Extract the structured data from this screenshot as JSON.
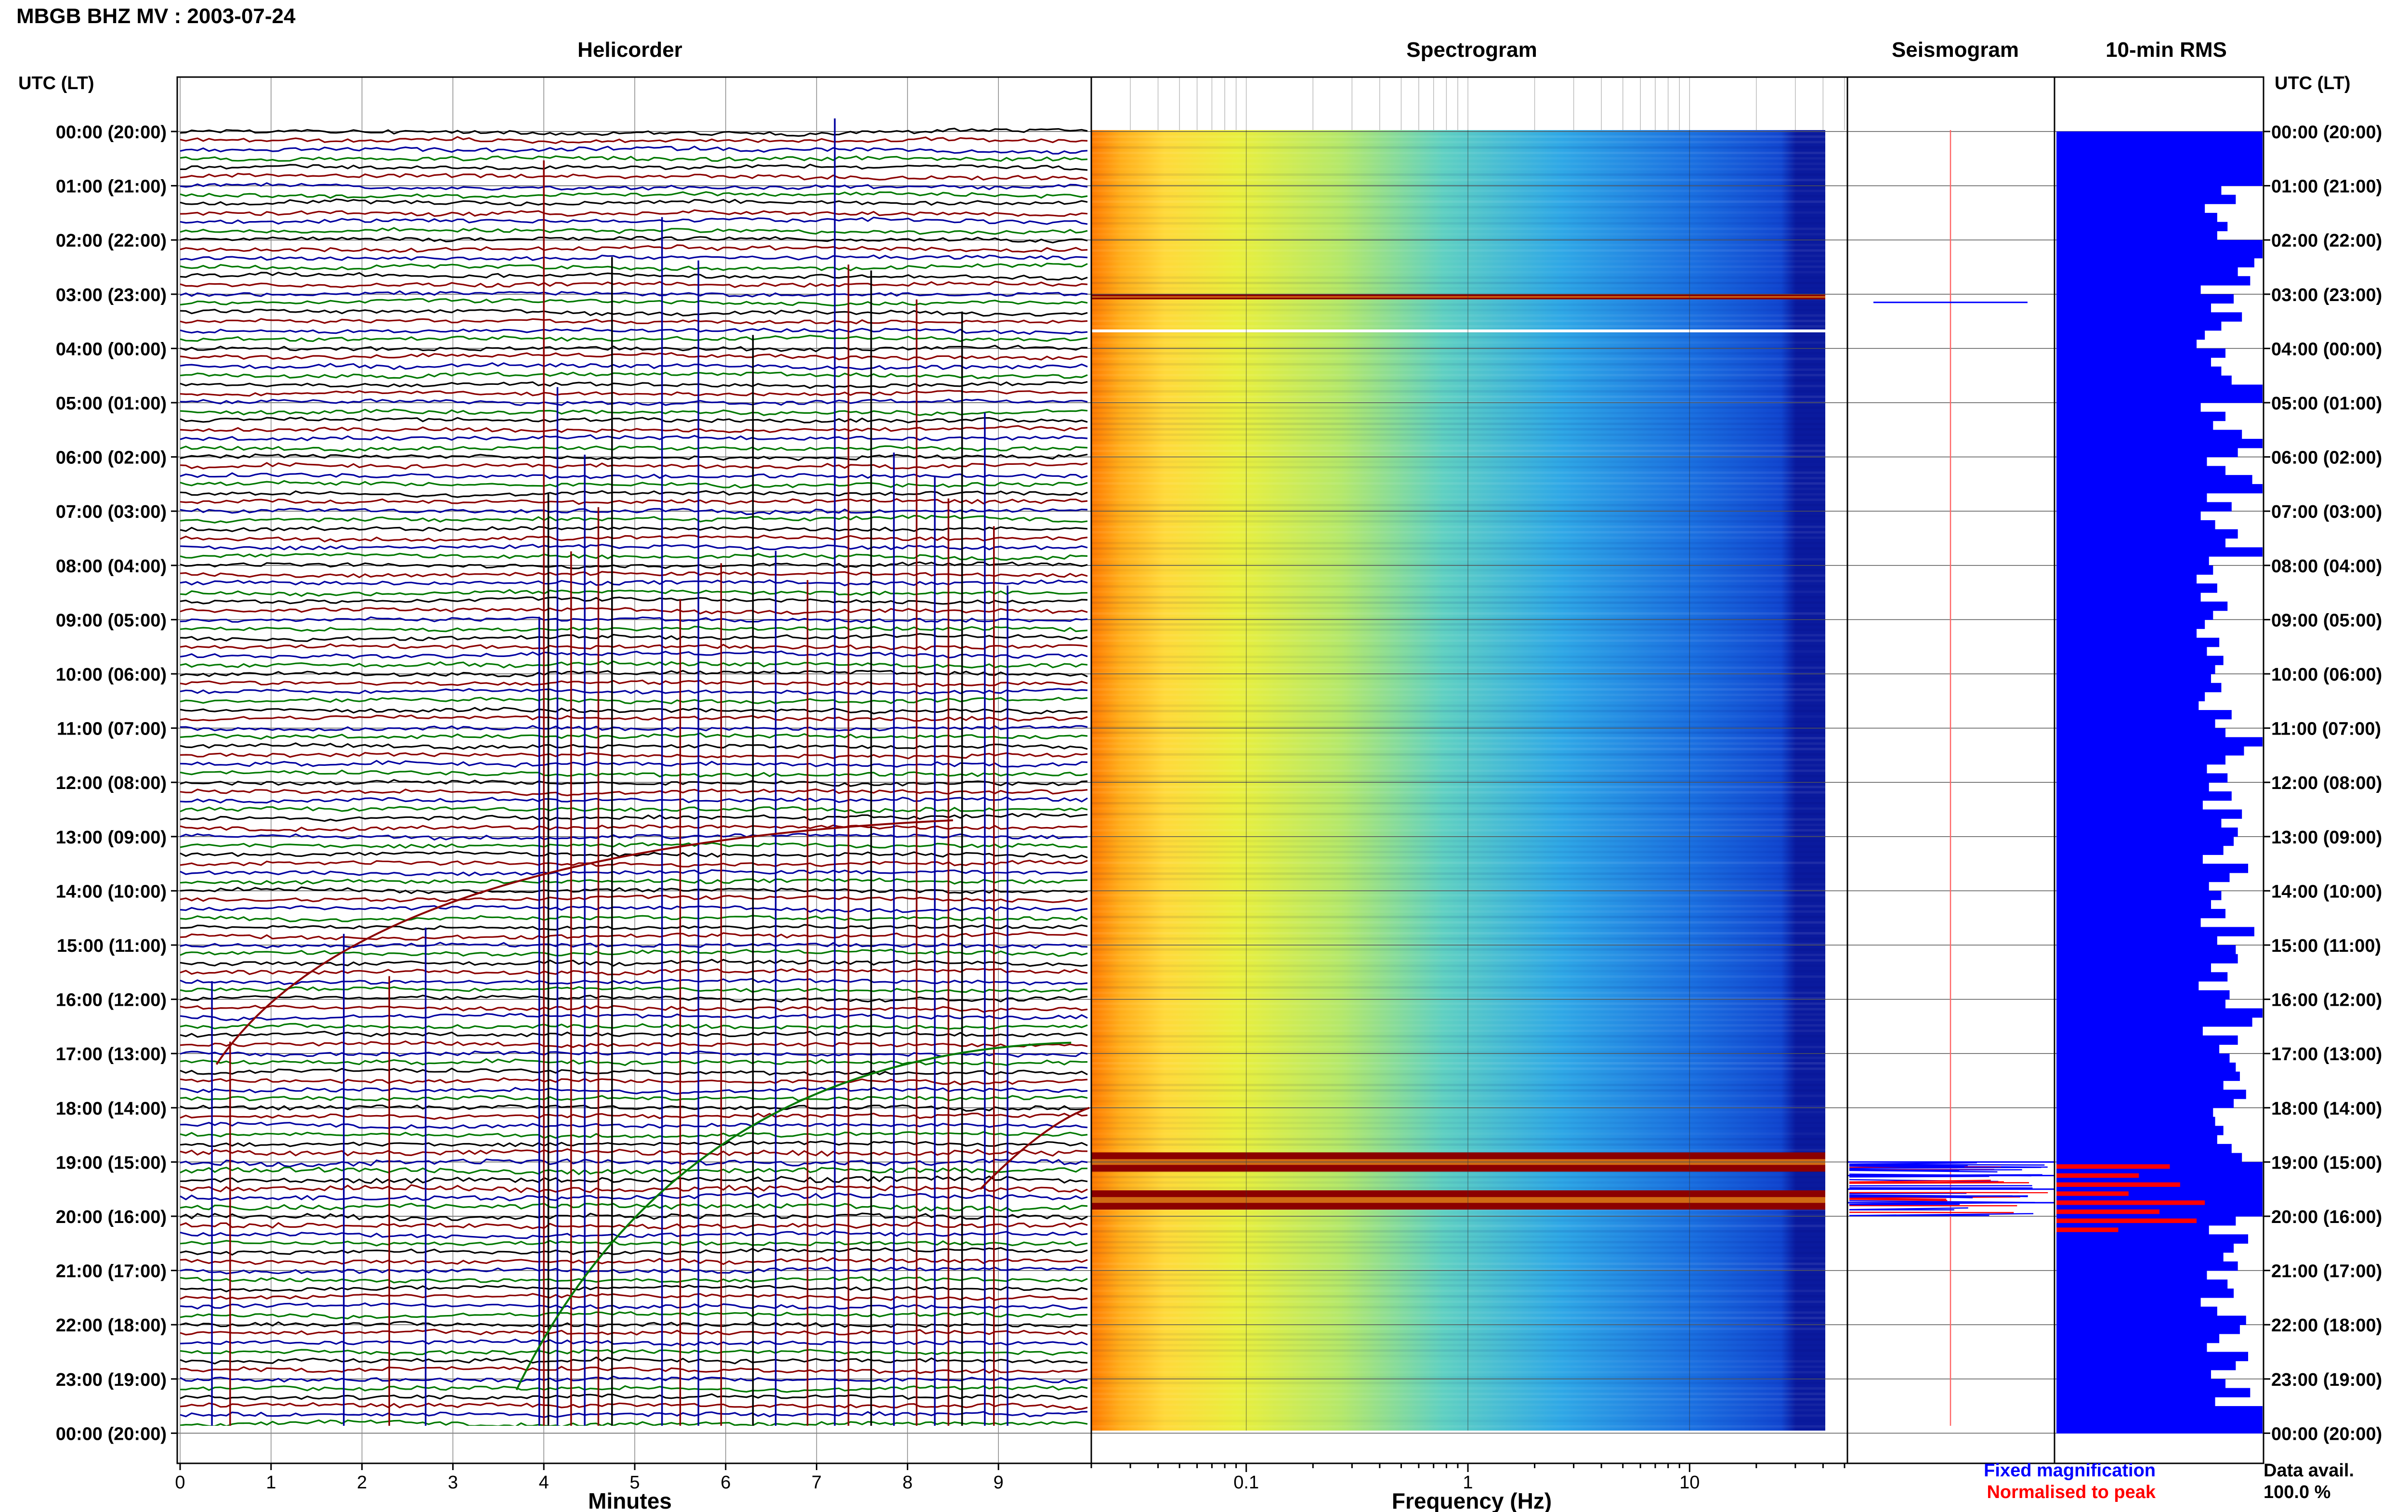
{
  "header": {
    "title": "MBGB BHZ MV : 2003-07-24",
    "time_axis_label": "UTC (LT)"
  },
  "panels": {
    "helicorder": "Helicorder",
    "spectrogram": "Spectrogram",
    "seismogram": "Seismogram",
    "rms": "10-min RMS"
  },
  "footer": {
    "fixed": "Fixed magnification",
    "normalised": "Normalised to peak",
    "avail_label": "Data avail.",
    "avail_value": "100.0 %"
  },
  "colors": {
    "helicorder_traces": [
      "#000000",
      "#8b0000",
      "#0000a0",
      "#007800"
    ],
    "rms_bar": "#0000ff",
    "rms_peak": "#ff0000",
    "fixed_text": "#0000ff",
    "normalised_text": "#ff0000"
  },
  "chart_data": [
    {
      "type": "line",
      "title": "Helicorder",
      "xlabel": "Minutes",
      "x_ticks": [
        "0",
        "1",
        "2",
        "3",
        "4",
        "5",
        "6",
        "7",
        "8",
        "9"
      ],
      "xlim": [
        0,
        10
      ],
      "y_ticks": [
        "00:00 (20:00)",
        "01:00 (21:00)",
        "02:00 (22:00)",
        "03:00 (23:00)",
        "04:00 (00:00)",
        "05:00 (01:00)",
        "06:00 (02:00)",
        "07:00 (03:00)",
        "08:00 (04:00)",
        "09:00 (05:00)",
        "10:00 (06:00)",
        "11:00 (07:00)",
        "12:00 (08:00)",
        "13:00 (09:00)",
        "14:00 (10:00)",
        "15:00 (11:00)",
        "16:00 (12:00)",
        "17:00 (13:00)",
        "18:00 (14:00)",
        "19:00 (15:00)",
        "20:00 (16:00)",
        "21:00 (17:00)",
        "22:00 (18:00)",
        "23:00 (19:00)",
        "00:00 (20:00)"
      ],
      "trace_interval_minutes": 10
    },
    {
      "type": "heatmap",
      "title": "Spectrogram",
      "xlabel": "Frequency (Hz)",
      "x_scale": "log",
      "x_ticks": [
        "0.1",
        "1",
        "10"
      ],
      "xlim": [
        0.02,
        50
      ],
      "event_rows_hours": [
        3.05,
        19.0,
        19.7
      ]
    },
    {
      "type": "line",
      "title": "Seismogram",
      "event_rows_hours": [
        3.15,
        19.0,
        19.25,
        19.5,
        19.75
      ]
    },
    {
      "type": "bar",
      "title": "10-min RMS",
      "orientation": "horizontal",
      "interval_minutes": 10,
      "bar_fractions": [
        1,
        1,
        1,
        1,
        1,
        1,
        0.8,
        0.87,
        0.72,
        0.78,
        0.83,
        0.78,
        1,
        1,
        0.96,
        0.88,
        0.94,
        0.7,
        0.86,
        0.75,
        0.9,
        0.8,
        0.72,
        0.68,
        0.82,
        0.75,
        0.8,
        0.85,
        1,
        1,
        0.7,
        0.82,
        0.76,
        0.9,
        1,
        0.88,
        0.73,
        0.82,
        0.95,
        1,
        0.73,
        0.85,
        0.7,
        0.77,
        0.88,
        0.82,
        1,
        0.74,
        0.76,
        0.68,
        0.78,
        0.7,
        0.83,
        0.76,
        0.72,
        0.68,
        0.79,
        0.73,
        0.81,
        0.77,
        0.75,
        0.8,
        0.72,
        0.69,
        0.85,
        0.77,
        0.82,
        1,
        0.91,
        0.82,
        0.73,
        0.83,
        0.74,
        0.85,
        0.71,
        0.9,
        0.8,
        0.88,
        0.86,
        0.81,
        0.71,
        0.93,
        0.84,
        0.74,
        0.8,
        0.75,
        0.82,
        0.7,
        0.96,
        0.78,
        0.87,
        0.88,
        0.75,
        0.83,
        0.69,
        0.84,
        0.82,
        1,
        0.95,
        0.71,
        0.88,
        0.79,
        0.84,
        0.87,
        0.89,
        0.81,
        0.92,
        0.86,
        0.76,
        0.77,
        0.81,
        0.78,
        0.85,
        0.9,
        1,
        1,
        1,
        1,
        1,
        1,
        0.87,
        0.74,
        0.93,
        0.86,
        0.81,
        0.88,
        0.73,
        0.83,
        0.86,
        0.7,
        0.78,
        0.92,
        0.89,
        0.79,
        0.73,
        0.93,
        0.87,
        0.75,
        0.82,
        0.94,
        0.77,
        1,
        1,
        1
      ],
      "peak_rows": [
        114,
        115,
        116,
        117,
        118,
        119,
        120,
        121
      ],
      "peak_fractions": [
        0.55,
        0.4,
        0.6,
        0.35,
        0.72,
        0.5,
        0.68,
        0.3
      ]
    }
  ]
}
